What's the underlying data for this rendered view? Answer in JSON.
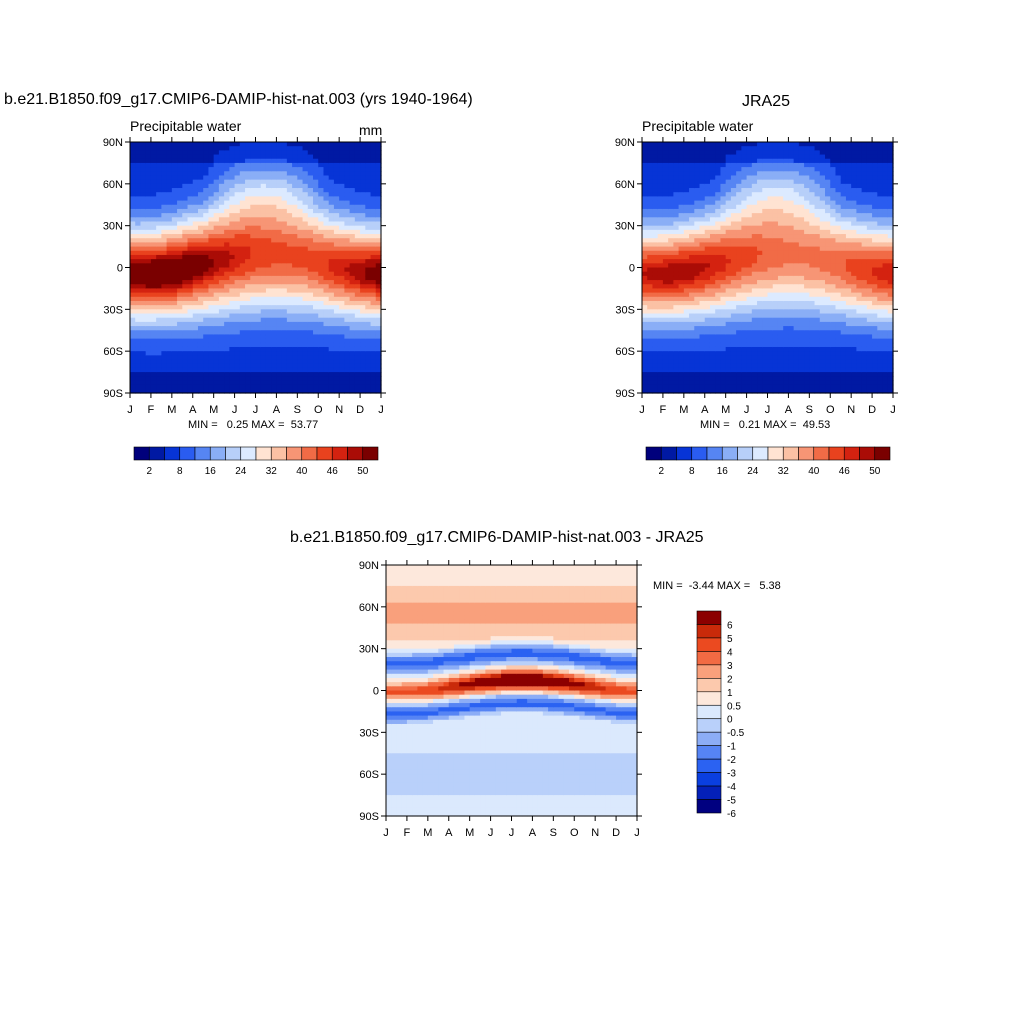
{
  "colors": {
    "seq_palette": [
      "#00007c",
      "#0019a3",
      "#0734d6",
      "#2a5cf0",
      "#5685f3",
      "#8aaef6",
      "#b7cff9",
      "#dceaff",
      "#ffe3d2",
      "#fbc1a4",
      "#f79575",
      "#f16b46",
      "#e9421e",
      "#d42210",
      "#aa0c06",
      "#7a0000"
    ],
    "diff_palette": [
      "#000080",
      "#0420b8",
      "#0a3fe0",
      "#2b62f2",
      "#5684f4",
      "#8cadf6",
      "#b9d0fa",
      "#dbe9fd",
      "#fde8dc",
      "#fcc9ad",
      "#f9a07c",
      "#f26a43",
      "#eb4a20",
      "#c92a0a",
      "#8b0000"
    ]
  },
  "months": [
    "J",
    "F",
    "M",
    "A",
    "M",
    "J",
    "J",
    "A",
    "S",
    "O",
    "N",
    "D",
    "J"
  ],
  "lat_ticks": [
    "90N",
    "60N",
    "30N",
    "0",
    "30S",
    "60S",
    "90S"
  ],
  "chart_data": [
    {
      "type": "heatmap",
      "title": "b.e21.B1850.f09_g17.CMIP6-DAMIP-hist-nat.003 (yrs 1940-1964)",
      "left_label": "Precipitable water",
      "units": "mm",
      "stats": "MIN =   0.25 MAX =  53.77",
      "min": 0.25,
      "max": 53.77,
      "colorbar_labels": [
        "2",
        "8",
        "16",
        "24",
        "32",
        "40",
        "46",
        "50"
      ],
      "peak": 53.5
    },
    {
      "type": "heatmap",
      "title": "JRA25",
      "left_label": "Precipitable water",
      "units": "",
      "stats": "MIN =   0.21 MAX =  49.53",
      "min": 0.21,
      "max": 49.53,
      "colorbar_labels": [
        "2",
        "8",
        "16",
        "24",
        "32",
        "40",
        "46",
        "50"
      ],
      "peak": 49.5
    },
    {
      "type": "heatmap",
      "title": "b.e21.B1850.f09_g17.CMIP6-DAMIP-hist-nat.003 - JRA25",
      "stats": "MIN =  -3.44 MAX =   5.38",
      "min": -3.44,
      "max": 5.38,
      "colorbar_labels": [
        "6",
        "5",
        "4",
        "3",
        "2",
        "1",
        "0.5",
        "0",
        "-0.5",
        "-1",
        "-2",
        "-3",
        "-4",
        "-5",
        "-6"
      ]
    }
  ]
}
